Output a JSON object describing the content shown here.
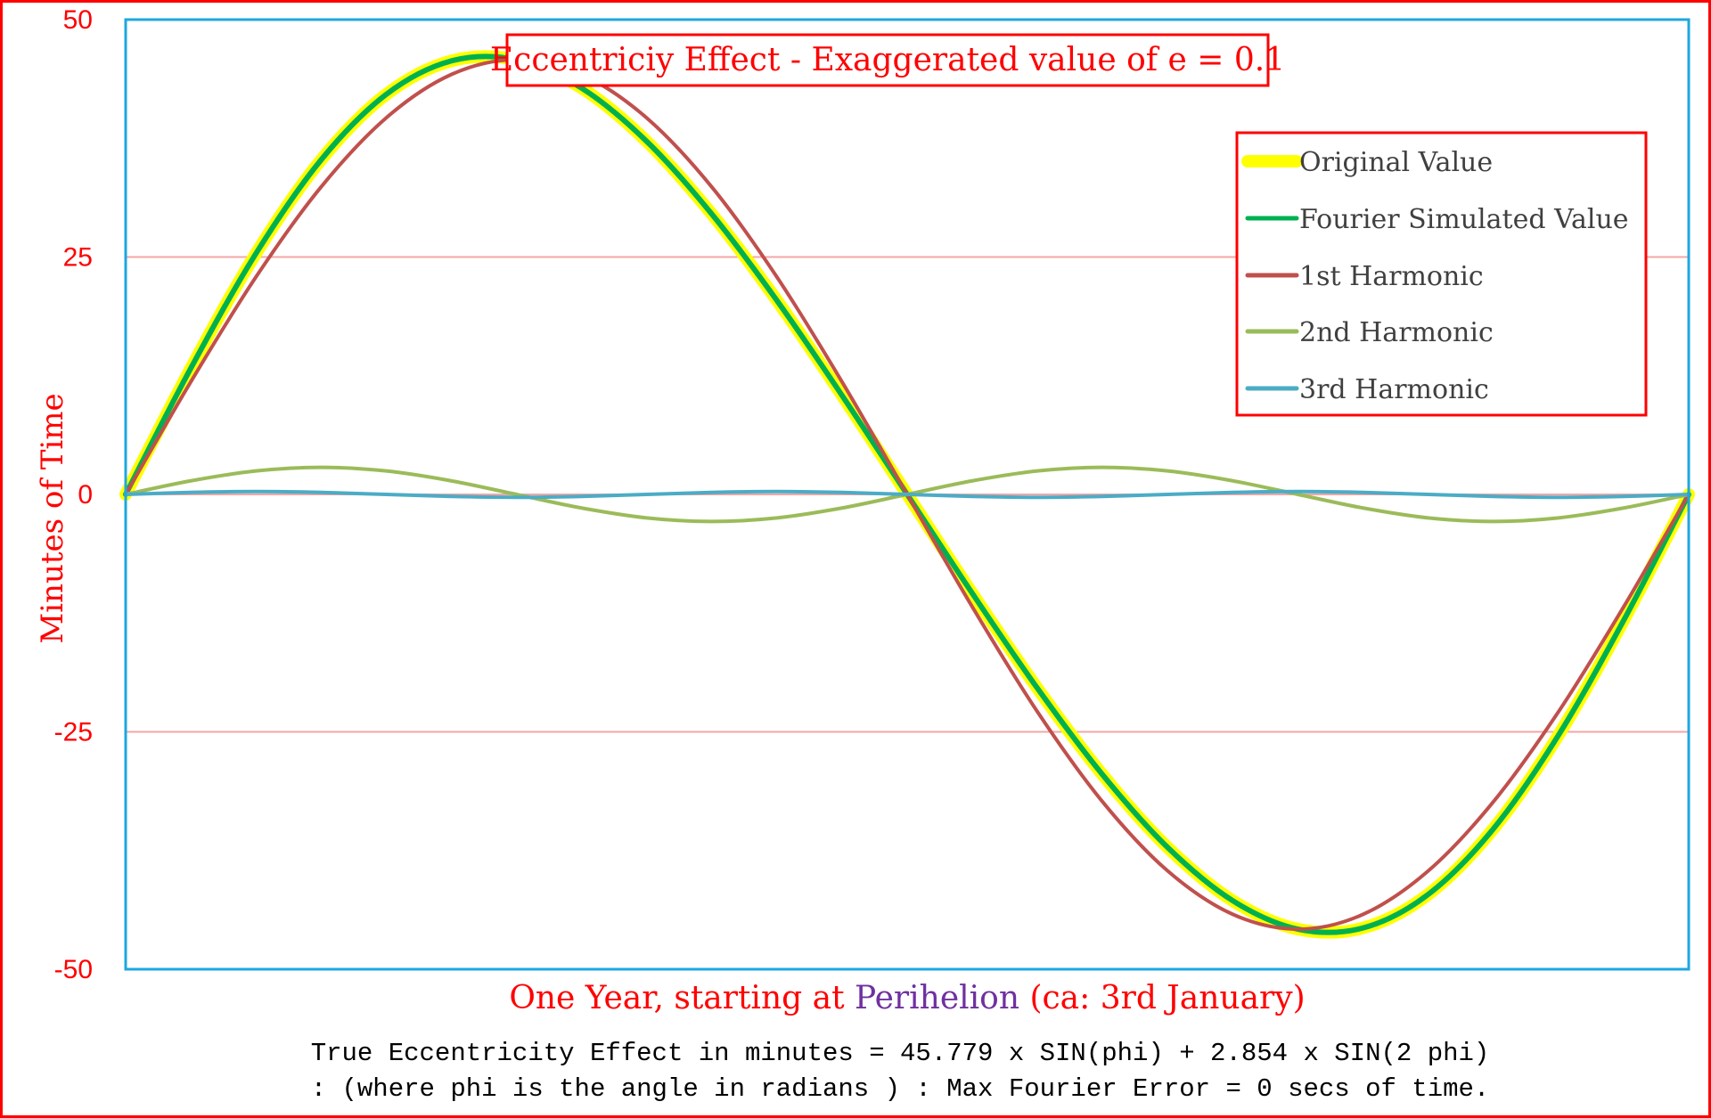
{
  "chart_data": {
    "type": "line",
    "title": "Eccentriciy Effect - Exaggerated value of e = 0.1",
    "xlabel_parts": {
      "before": "One Year, starting at ",
      "highlight": "Perihelion",
      "after": " (ca: 3rd January)"
    },
    "ylabel": "Minutes of Time",
    "ylim": [
      -50,
      50
    ],
    "yticks": [
      "50",
      "25",
      "0",
      "-25",
      "-50"
    ],
    "ytick_values": [
      50,
      25,
      0,
      -25,
      -50
    ],
    "grid": true,
    "legend_position": "top-right",
    "x_phi_degrees": [
      0,
      15,
      30,
      45,
      60,
      75,
      90,
      105,
      120,
      135,
      150,
      165,
      180,
      195,
      210,
      225,
      240,
      255,
      270,
      285,
      300,
      315,
      330,
      345,
      360
    ],
    "series": [
      {
        "name": "Original Value",
        "color": "#ffff00",
        "values": [
          0,
          13.28,
          25.36,
          35.22,
          42.12,
          45.65,
          45.78,
          42.79,
          37.18,
          29.52,
          20.42,
          10.42,
          0,
          -10.42,
          -20.42,
          -29.52,
          -37.18,
          -42.79,
          -45.78,
          -45.65,
          -42.12,
          -35.22,
          -25.36,
          -13.28,
          0
        ]
      },
      {
        "name": "Fourier Simulated Value",
        "color": "#00b050",
        "values": [
          0,
          13.28,
          25.36,
          35.22,
          42.12,
          45.65,
          45.78,
          42.79,
          37.18,
          29.52,
          20.42,
          10.42,
          0,
          -10.42,
          -20.42,
          -29.52,
          -37.18,
          -42.79,
          -45.78,
          -45.65,
          -42.12,
          -35.22,
          -25.36,
          -13.28,
          0
        ]
      },
      {
        "name": "1st Harmonic",
        "color": "#c0504d",
        "values": [
          0,
          11.85,
          22.89,
          32.37,
          39.65,
          44.22,
          45.78,
          44.22,
          39.65,
          32.37,
          22.89,
          11.85,
          0,
          -11.85,
          -22.89,
          -32.37,
          -39.65,
          -44.22,
          -45.78,
          -44.22,
          -39.65,
          -32.37,
          -22.89,
          -11.85,
          0
        ]
      },
      {
        "name": "2nd Harmonic",
        "color": "#9bbb59",
        "values": [
          0,
          1.43,
          2.47,
          2.85,
          2.47,
          1.43,
          0,
          -1.43,
          -2.47,
          -2.85,
          -2.47,
          -1.43,
          0,
          1.43,
          2.47,
          2.85,
          2.47,
          1.43,
          0,
          -1.43,
          -2.47,
          -2.85,
          -2.47,
          -1.43,
          0
        ]
      },
      {
        "name": "3rd Harmonic",
        "color": "#4bacc6",
        "values": [
          0,
          0.21,
          0.3,
          0.21,
          0,
          -0.21,
          -0.3,
          -0.21,
          0,
          0.21,
          0.3,
          0.21,
          0,
          -0.21,
          -0.3,
          -0.21,
          0,
          0.21,
          0.3,
          0.21,
          0,
          -0.21,
          -0.3,
          -0.21,
          0
        ]
      }
    ],
    "footnote": [
      "True Eccentricity Effect in minutes = 45.779 x SIN(phi) + 2.854 x SIN(2 phi)",
      ": (where phi is the angle in radians ) : Max Fourier Error = 0 secs of time."
    ]
  },
  "colors": {
    "frame": "#ff0000",
    "plot_border": "#1ea7e1",
    "grid": "#f4a6a6",
    "highlight": "#7030a0",
    "legend_text": "#404040"
  }
}
